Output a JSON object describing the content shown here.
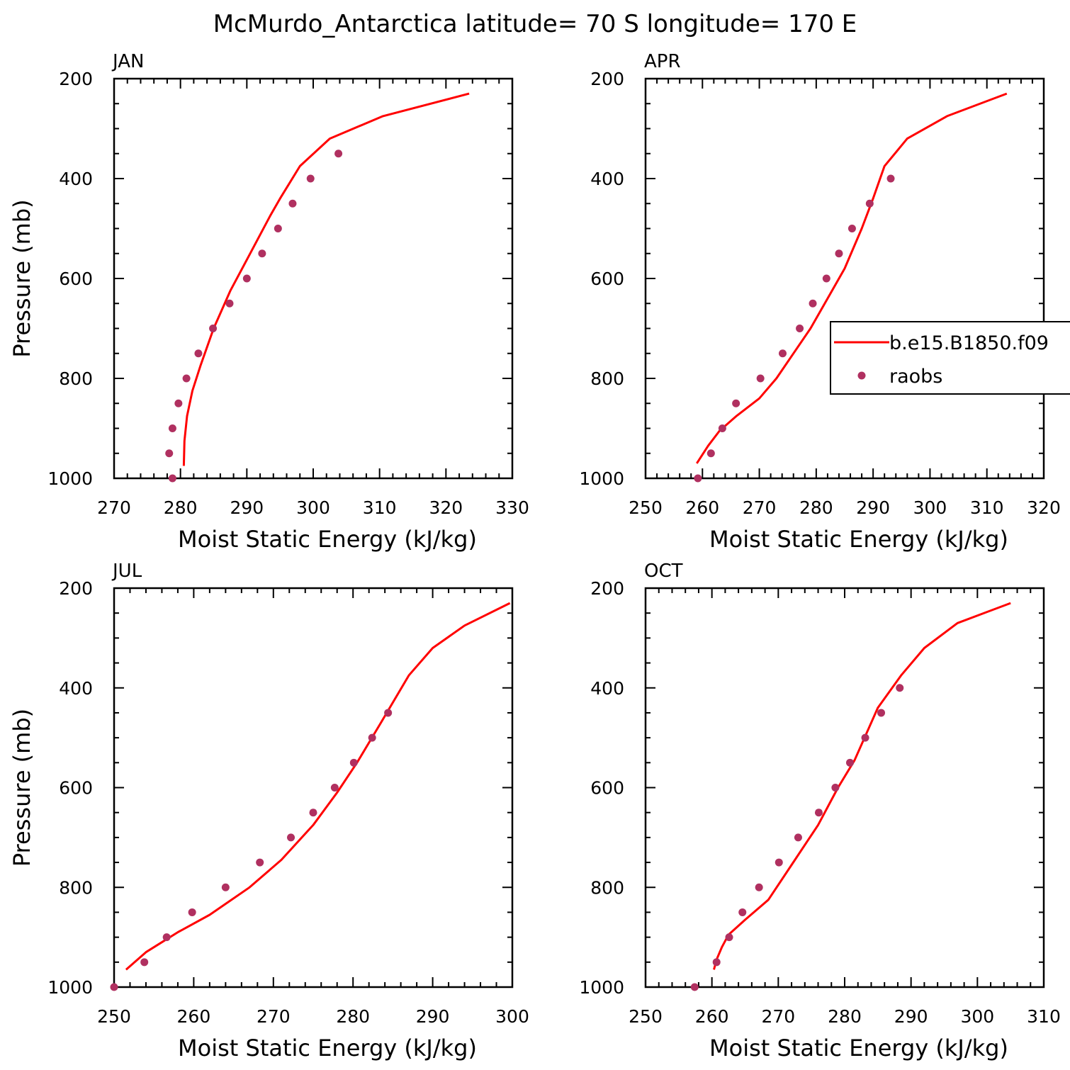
{
  "title": "McMurdo_Antarctica  latitude= 70 S longitude= 170 E",
  "colors": {
    "model": "#ff0000",
    "obs": "#b03060",
    "axis": "#000000"
  },
  "legend": {
    "items": [
      "b.e15.B1850.f09",
      "raobs"
    ]
  },
  "chart_data": [
    {
      "type": "line",
      "panel": "JAN",
      "xlabel": "Moist Static Energy (kJ/kg)",
      "ylabel": "Pressure (mb)",
      "xlim": [
        270,
        330
      ],
      "ylim": [
        1000,
        200
      ],
      "xticks": [
        270,
        280,
        290,
        300,
        310,
        320,
        330
      ],
      "yticks": [
        200,
        400,
        600,
        800,
        1000
      ],
      "series": [
        {
          "name": "b.e15.B1850.f09",
          "x": [
            280.5,
            280.6,
            281.0,
            281.8,
            283.0,
            285.0,
            287.5,
            290.5,
            293.5,
            295.0,
            298.0,
            302.5,
            310.5,
            323.5
          ],
          "y": [
            975,
            925,
            875,
            825,
            775,
            700,
            625,
            550,
            475,
            440,
            375,
            320,
            275,
            230
          ]
        },
        {
          "name": "raobs",
          "x": [
            278.8,
            278.3,
            278.8,
            279.7,
            280.9,
            282.7,
            284.9,
            287.4,
            290.0,
            292.3,
            294.7,
            296.9,
            299.6,
            303.8
          ],
          "y": [
            1000,
            950,
            900,
            850,
            800,
            750,
            700,
            650,
            600,
            550,
            500,
            450,
            400,
            350
          ]
        }
      ]
    },
    {
      "type": "line",
      "panel": "APR",
      "xlabel": "Moist Static Energy (kJ/kg)",
      "ylabel": "",
      "xlim": [
        250,
        320
      ],
      "ylim": [
        1000,
        200
      ],
      "xticks": [
        250,
        260,
        270,
        280,
        290,
        300,
        310,
        320
      ],
      "yticks": [
        200,
        400,
        600,
        800,
        1000
      ],
      "series": [
        {
          "name": "b.e15.B1850.f09",
          "x": [
            259.0,
            261.0,
            263.0,
            266.0,
            270.0,
            273.0,
            276.0,
            279.0,
            282.0,
            285.0,
            288.0,
            290.0,
            292.0,
            296.0,
            303.0,
            313.5
          ],
          "y": [
            970,
            935,
            905,
            875,
            840,
            800,
            750,
            700,
            640,
            580,
            500,
            440,
            375,
            320,
            275,
            230
          ]
        },
        {
          "name": "raobs",
          "x": [
            259.2,
            261.5,
            263.5,
            265.9,
            270.2,
            274.1,
            277.1,
            279.4,
            281.8,
            284.0,
            286.3,
            289.4,
            293.1
          ],
          "y": [
            1000,
            950,
            900,
            850,
            800,
            750,
            700,
            650,
            600,
            550,
            500,
            450,
            400
          ]
        }
      ]
    },
    {
      "type": "line",
      "panel": "JUL",
      "xlabel": "Moist Static Energy (kJ/kg)",
      "ylabel": "Pressure (mb)",
      "xlim": [
        250,
        300
      ],
      "ylim": [
        1000,
        200
      ],
      "xticks": [
        250,
        260,
        270,
        280,
        290,
        300
      ],
      "yticks": [
        200,
        400,
        600,
        800,
        1000
      ],
      "series": [
        {
          "name": "b.e15.B1850.f09",
          "x": [
            251.5,
            254.0,
            256.0,
            258.0,
            262.0,
            267.0,
            271.0,
            275.0,
            278.0,
            280.5,
            283.5,
            287.0,
            290.0,
            294.0,
            299.7
          ],
          "y": [
            965,
            930,
            910,
            890,
            855,
            800,
            745,
            675,
            610,
            550,
            470,
            375,
            320,
            275,
            230
          ]
        },
        {
          "name": "raobs",
          "x": [
            250.0,
            253.8,
            256.6,
            259.8,
            264.0,
            268.3,
            272.2,
            275.0,
            277.7,
            280.1,
            282.4,
            284.4
          ],
          "y": [
            1000,
            950,
            900,
            850,
            800,
            750,
            700,
            650,
            600,
            550,
            500,
            450
          ]
        }
      ]
    },
    {
      "type": "line",
      "panel": "OCT",
      "xlabel": "Moist Static Energy (kJ/kg)",
      "ylabel": "",
      "xlim": [
        250,
        310
      ],
      "ylim": [
        1000,
        200
      ],
      "xticks": [
        250,
        260,
        270,
        280,
        290,
        300,
        310
      ],
      "yticks": [
        200,
        400,
        600,
        800,
        1000
      ],
      "series": [
        {
          "name": "b.e15.B1850.f09",
          "x": [
            260.3,
            260.7,
            261.5,
            262.5,
            265.0,
            268.5,
            272.5,
            276.0,
            279.0,
            281.5,
            285.0,
            288.5,
            292.0,
            297.0,
            305.0
          ],
          "y": [
            965,
            945,
            920,
            895,
            865,
            825,
            745,
            675,
            600,
            545,
            440,
            375,
            320,
            270,
            230
          ]
        },
        {
          "name": "raobs",
          "x": [
            257.4,
            260.7,
            262.6,
            264.6,
            267.1,
            270.1,
            273.0,
            276.1,
            278.6,
            280.8,
            283.1,
            285.5,
            288.3
          ],
          "y": [
            1000,
            950,
            900,
            850,
            800,
            750,
            700,
            650,
            600,
            550,
            500,
            450,
            400
          ]
        }
      ]
    }
  ]
}
